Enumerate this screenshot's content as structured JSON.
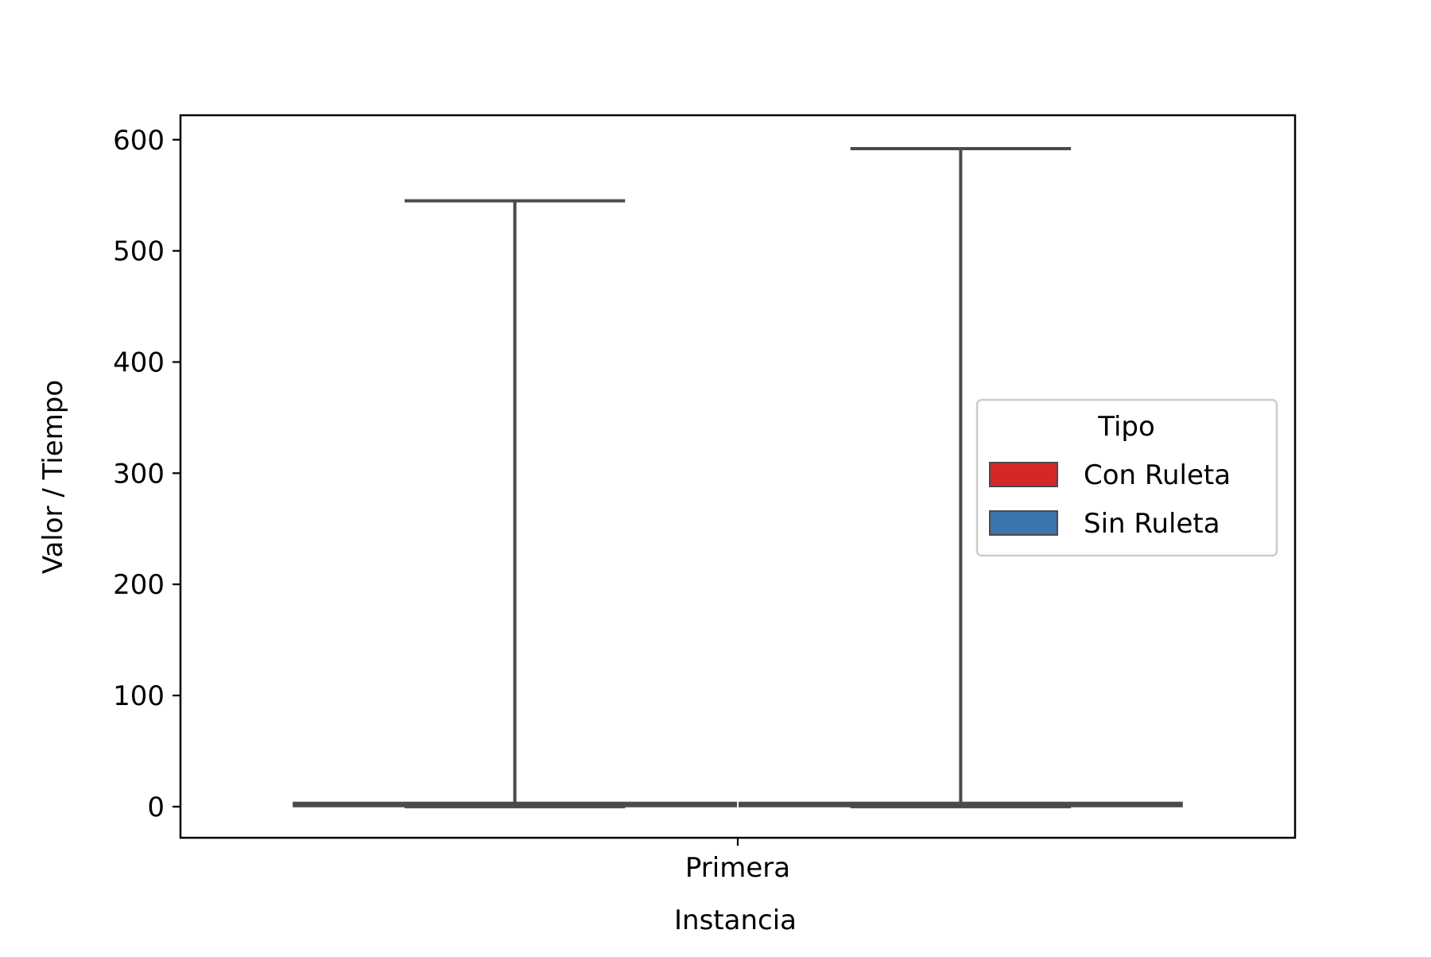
{
  "chart_data": {
    "type": "box",
    "xlabel": "Instancia",
    "ylabel": "Valor / Tiempo",
    "categories": [
      "Primera"
    ],
    "ylim": [
      -28,
      622
    ],
    "yticks": [
      0,
      100,
      200,
      300,
      400,
      500,
      600
    ],
    "grid": false,
    "legend": {
      "title": "Tipo",
      "placement": "center-right"
    },
    "series": [
      {
        "name": "Con Ruleta",
        "color": "#d62728",
        "values": [
          {
            "category": "Primera",
            "whislo": 0,
            "q1": 1,
            "med": 2,
            "q3": 3,
            "whishi": 545
          }
        ]
      },
      {
        "name": "Sin Ruleta",
        "color": "#3a75b0",
        "values": [
          {
            "category": "Primera",
            "whislo": 0,
            "q1": 1,
            "med": 2,
            "q3": 3,
            "whishi": 592
          }
        ]
      }
    ],
    "box_edge_color": "#4a4a4a"
  }
}
